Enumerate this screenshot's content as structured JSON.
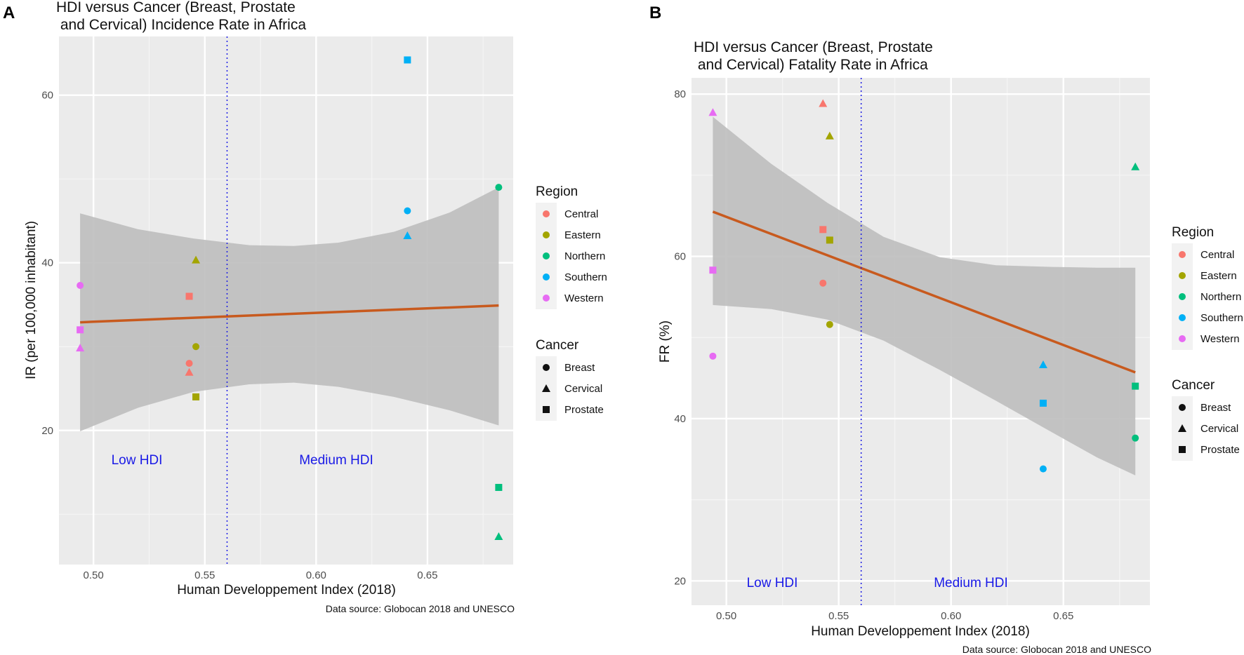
{
  "panels": [
    {
      "panel_label": "A",
      "title_line1": "HDI versus Cancer (Breast, Prostate",
      "title_line2": " and Cervical) Incidence Rate in Africa",
      "ylabel": "IR (per 100,000 inhabitant)",
      "xlabel": "Human Developpement Index (2018)",
      "caption": "Data source: Globocan 2018 and UNESCO",
      "zone_low": "Low HDI",
      "zone_medium": "Medium HDI",
      "x_ticks": [
        "0.50",
        "0.55",
        "0.60",
        "0.65"
      ],
      "y_ticks": [
        "20",
        "40",
        "60"
      ],
      "legend_region_title": "Region",
      "legend_region_items": [
        "Central",
        "Eastern",
        "Northern",
        "Southern",
        "Western"
      ],
      "legend_cancer_title": "Cancer",
      "legend_cancer_items": [
        "Breast",
        "Cervical",
        "Prostate"
      ]
    },
    {
      "panel_label": "B",
      "title_line1": "HDI versus Cancer (Breast, Prostate",
      "title_line2": " and Cervical) Fatality Rate in Africa",
      "ylabel": "FR (%)",
      "xlabel": "Human Developpement Index (2018)",
      "caption": "Data source: Globocan 2018 and UNESCO",
      "zone_low": "Low HDI",
      "zone_medium": "Medium HDI",
      "x_ticks": [
        "0.50",
        "0.55",
        "0.60",
        "0.65"
      ],
      "y_ticks": [
        "20",
        "40",
        "60",
        "80"
      ],
      "legend_region_title": "Region",
      "legend_region_items": [
        "Central",
        "Eastern",
        "Northern",
        "Southern",
        "Western"
      ],
      "legend_cancer_title": "Cancer",
      "legend_cancer_items": [
        "Breast",
        "Cervical",
        "Prostate"
      ]
    }
  ],
  "colors": {
    "Central": "#F8766D",
    "Eastern": "#A3A500",
    "Northern": "#00BF7D",
    "Southern": "#00B0F6",
    "Western": "#E76BF3",
    "panel_bg": "#EBEBEB",
    "ribbon": "#BEBEBE",
    "fit_line": "#C85A1E",
    "threshold": "#1A1AE6",
    "zone_text": "#1A1AE6"
  },
  "chart_data": [
    {
      "type": "scatter",
      "title": "HDI versus Cancer (Breast, Prostate and Cervical) Incidence Rate in Africa",
      "xlabel": "Human Developpement Index (2018)",
      "ylabel": "IR (per 100,000 inhabitant)",
      "xlim": [
        0.4845,
        0.6885
      ],
      "ylim": [
        4,
        67
      ],
      "x_ticks": [
        0.5,
        0.55,
        0.6,
        0.65
      ],
      "y_ticks": [
        20,
        40,
        60
      ],
      "threshold_x": 0.56,
      "points": [
        {
          "region": "Western",
          "cancer": "Breast",
          "x": 0.494,
          "y": 37.3
        },
        {
          "region": "Western",
          "cancer": "Prostate",
          "x": 0.494,
          "y": 32.0
        },
        {
          "region": "Western",
          "cancer": "Cervical",
          "x": 0.494,
          "y": 29.8
        },
        {
          "region": "Eastern",
          "cancer": "Cervical",
          "x": 0.546,
          "y": 40.3
        },
        {
          "region": "Central",
          "cancer": "Prostate",
          "x": 0.543,
          "y": 36.0
        },
        {
          "region": "Eastern",
          "cancer": "Breast",
          "x": 0.546,
          "y": 30.0
        },
        {
          "region": "Central",
          "cancer": "Breast",
          "x": 0.543,
          "y": 28.0
        },
        {
          "region": "Central",
          "cancer": "Cervical",
          "x": 0.543,
          "y": 26.9
        },
        {
          "region": "Eastern",
          "cancer": "Prostate",
          "x": 0.546,
          "y": 24.0
        },
        {
          "region": "Southern",
          "cancer": "Prostate",
          "x": 0.641,
          "y": 64.2
        },
        {
          "region": "Southern",
          "cancer": "Breast",
          "x": 0.641,
          "y": 46.2
        },
        {
          "region": "Southern",
          "cancer": "Cervical",
          "x": 0.641,
          "y": 43.2
        },
        {
          "region": "Northern",
          "cancer": "Breast",
          "x": 0.682,
          "y": 49.0
        },
        {
          "region": "Northern",
          "cancer": "Prostate",
          "x": 0.682,
          "y": 13.2
        },
        {
          "region": "Northern",
          "cancer": "Cervical",
          "x": 0.682,
          "y": 7.3
        }
      ],
      "fit": {
        "x": [
          0.494,
          0.682
        ],
        "y": [
          32.9,
          34.9
        ]
      },
      "ribbon": {
        "x": [
          0.494,
          0.52,
          0.545,
          0.57,
          0.59,
          0.61,
          0.635,
          0.66,
          0.682
        ],
        "upper": [
          45.9,
          44.0,
          42.9,
          42.1,
          42.0,
          42.4,
          43.7,
          46.0,
          49.0
        ],
        "lower": [
          19.9,
          22.7,
          24.6,
          25.5,
          25.7,
          25.2,
          24.0,
          22.4,
          20.6
        ]
      },
      "legend_position": "right"
    },
    {
      "type": "scatter",
      "title": "HDI versus Cancer (Breast, Prostate and Cervical) Fatality Rate in Africa",
      "xlabel": "Human Developpement Index (2018)",
      "ylabel": "FR (%)",
      "xlim": [
        0.4845,
        0.6885
      ],
      "ylim": [
        17,
        82
      ],
      "x_ticks": [
        0.5,
        0.55,
        0.6,
        0.65
      ],
      "y_ticks": [
        20,
        40,
        60,
        80
      ],
      "threshold_x": 0.56,
      "points": [
        {
          "region": "Western",
          "cancer": "Cervical",
          "x": 0.494,
          "y": 77.7
        },
        {
          "region": "Western",
          "cancer": "Prostate",
          "x": 0.494,
          "y": 58.3
        },
        {
          "region": "Western",
          "cancer": "Breast",
          "x": 0.494,
          "y": 47.7
        },
        {
          "region": "Central",
          "cancer": "Cervical",
          "x": 0.543,
          "y": 78.8
        },
        {
          "region": "Eastern",
          "cancer": "Cervical",
          "x": 0.546,
          "y": 74.8
        },
        {
          "region": "Central",
          "cancer": "Prostate",
          "x": 0.543,
          "y": 63.3
        },
        {
          "region": "Eastern",
          "cancer": "Prostate",
          "x": 0.546,
          "y": 62.0
        },
        {
          "region": "Central",
          "cancer": "Breast",
          "x": 0.543,
          "y": 56.7
        },
        {
          "region": "Eastern",
          "cancer": "Breast",
          "x": 0.546,
          "y": 51.6
        },
        {
          "region": "Northern",
          "cancer": "Cervical",
          "x": 0.682,
          "y": 71.0
        },
        {
          "region": "Northern",
          "cancer": "Prostate",
          "x": 0.682,
          "y": 44.0
        },
        {
          "region": "Northern",
          "cancer": "Breast",
          "x": 0.682,
          "y": 37.6
        },
        {
          "region": "Southern",
          "cancer": "Cervical",
          "x": 0.641,
          "y": 46.6
        },
        {
          "region": "Southern",
          "cancer": "Prostate",
          "x": 0.641,
          "y": 41.9
        },
        {
          "region": "Southern",
          "cancer": "Breast",
          "x": 0.641,
          "y": 33.8
        }
      ],
      "fit": {
        "x": [
          0.494,
          0.682
        ],
        "y": [
          65.5,
          45.7
        ]
      },
      "ribbon": {
        "x": [
          0.494,
          0.52,
          0.545,
          0.57,
          0.595,
          0.62,
          0.645,
          0.665,
          0.682
        ],
        "upper": [
          77.2,
          71.4,
          66.6,
          62.4,
          59.9,
          58.9,
          58.7,
          58.6,
          58.6
        ],
        "lower": [
          54.0,
          53.5,
          52.2,
          49.6,
          46.0,
          42.2,
          38.3,
          35.2,
          33.0
        ]
      },
      "legend_position": "right"
    }
  ]
}
